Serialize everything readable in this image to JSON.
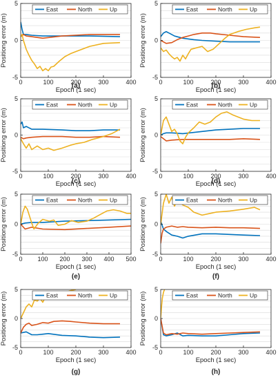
{
  "colors": {
    "East": "#0072BD",
    "North": "#D95319",
    "Up": "#EDB120",
    "grid": "#d9d9d9",
    "axis": "#262626"
  },
  "chart_data": [
    {
      "panel": "(a)",
      "type": "line",
      "xlabel": "Epoch (1 sec)",
      "ylabel": "Positiong error (m)",
      "xlim": [
        0,
        400
      ],
      "ylim": [
        -5,
        5
      ],
      "xticks": [
        0,
        100,
        200,
        300,
        400
      ],
      "yticks": [
        -5,
        0,
        5
      ],
      "grid": true,
      "legend": "top",
      "series": [
        {
          "name": "East",
          "x": [
            0,
            5,
            10,
            20,
            40,
            80,
            150,
            250,
            360
          ],
          "y": [
            2.5,
            1.5,
            0.8,
            0.8,
            0.7,
            0.6,
            0.6,
            0.6,
            0.5
          ]
        },
        {
          "name": "North",
          "x": [
            0,
            10,
            20,
            40,
            80,
            150,
            250,
            360
          ],
          "y": [
            0.5,
            0.8,
            0.6,
            0.5,
            0.3,
            0.6,
            0.8,
            0.8
          ]
        },
        {
          "name": "Up",
          "x": [
            0,
            5,
            10,
            20,
            30,
            40,
            50,
            60,
            70,
            80,
            90,
            100,
            110,
            120,
            140,
            160,
            180,
            200,
            250,
            300,
            360
          ],
          "y": [
            0.5,
            0.8,
            0,
            -1.2,
            -2.0,
            -2.7,
            -3.2,
            -3.8,
            -3.5,
            -4.1,
            -3.8,
            -4.1,
            -3.6,
            -3.5,
            -2.8,
            -2.2,
            -1.8,
            -1.5,
            -0.8,
            -0.4,
            -0.3
          ]
        }
      ]
    },
    {
      "panel": "(b)",
      "type": "line",
      "xlabel": "Epoch (1 sec)",
      "ylabel": "Positiong error (m)",
      "xlim": [
        0,
        400
      ],
      "ylim": [
        -5,
        5
      ],
      "xticks": [
        0,
        100,
        200,
        300,
        400
      ],
      "yticks": [
        -5,
        0,
        5
      ],
      "grid": true,
      "legend": "top",
      "series": [
        {
          "name": "East",
          "x": [
            0,
            10,
            20,
            30,
            50,
            80,
            120,
            150,
            200,
            250,
            300,
            360
          ],
          "y": [
            0.5,
            1.0,
            1.2,
            1.0,
            0.6,
            0.3,
            0.1,
            0.0,
            -0.1,
            -0.2,
            -0.2,
            -0.2
          ]
        },
        {
          "name": "North",
          "x": [
            0,
            20,
            40,
            60,
            80,
            100,
            120,
            150,
            180,
            200,
            250,
            300,
            360
          ],
          "y": [
            0.0,
            -0.4,
            -0.3,
            0.1,
            0.4,
            0.6,
            0.8,
            1.0,
            1.0,
            0.9,
            0.7,
            0.5,
            0.4
          ]
        },
        {
          "name": "Up",
          "x": [
            0,
            10,
            20,
            30,
            40,
            50,
            60,
            70,
            80,
            90,
            100,
            110,
            130,
            150,
            170,
            190,
            210,
            230,
            250,
            280,
            310,
            340,
            360
          ],
          "y": [
            -1.0,
            -1.5,
            -1.3,
            -1.8,
            -2.2,
            -2.5,
            -2.3,
            -2.8,
            -2.0,
            -2.5,
            -1.8,
            -1.2,
            -1.0,
            -0.8,
            -1.5,
            -1.2,
            -0.5,
            0.2,
            0.8,
            1.2,
            1.5,
            1.7,
            1.8
          ]
        }
      ]
    },
    {
      "panel": "(c)",
      "type": "line",
      "xlabel": "Epoch (1 sec)",
      "ylabel": "Positiong error (m)",
      "xlim": [
        0,
        400
      ],
      "ylim": [
        -5,
        5
      ],
      "xticks": [
        0,
        100,
        200,
        300,
        400
      ],
      "yticks": [
        -5,
        0,
        5
      ],
      "grid": true,
      "legend": "top",
      "series": [
        {
          "name": "East",
          "x": [
            0,
            5,
            10,
            20,
            40,
            80,
            150,
            200,
            250,
            300,
            360
          ],
          "y": [
            1.5,
            1.8,
            1.0,
            1.2,
            0.8,
            0.8,
            0.7,
            0.6,
            0.6,
            0.7,
            0.7
          ]
        },
        {
          "name": "North",
          "x": [
            0,
            10,
            20,
            40,
            80,
            150,
            200,
            250,
            300,
            360
          ],
          "y": [
            -0.3,
            -0.5,
            -0.4,
            -0.3,
            -0.2,
            -0.2,
            -0.3,
            -0.3,
            -0.2,
            -0.3
          ]
        },
        {
          "name": "Up",
          "x": [
            0,
            10,
            20,
            30,
            40,
            60,
            80,
            100,
            120,
            150,
            180,
            200,
            230,
            260,
            300,
            330,
            360
          ],
          "y": [
            -0.5,
            -1.2,
            -1.8,
            -1.2,
            -2.0,
            -1.5,
            -2.0,
            -1.8,
            -2.1,
            -1.8,
            -1.4,
            -1.2,
            -1.0,
            -0.6,
            -0.2,
            0.2,
            0.8
          ]
        }
      ]
    },
    {
      "panel": "(d)",
      "type": "line",
      "xlabel": "Epoch (1 sec)",
      "ylabel": "Positiong error (m)",
      "xlim": [
        0,
        400
      ],
      "ylim": [
        -5,
        5
      ],
      "xticks": [
        0,
        100,
        200,
        300,
        400
      ],
      "yticks": [
        -5,
        0,
        5
      ],
      "grid": true,
      "legend": "top",
      "series": [
        {
          "name": "East",
          "x": [
            0,
            10,
            20,
            40,
            80,
            150,
            200,
            250,
            300,
            360
          ],
          "y": [
            0.0,
            0.2,
            0.3,
            0.3,
            0.2,
            0.5,
            0.7,
            0.8,
            0.9,
            0.9
          ]
        },
        {
          "name": "North",
          "x": [
            0,
            10,
            20,
            40,
            80,
            150,
            200,
            250,
            300,
            360
          ],
          "y": [
            -0.2,
            -0.5,
            -0.8,
            -0.7,
            -0.6,
            -0.6,
            -0.6,
            -0.6,
            -0.5,
            -0.6
          ]
        },
        {
          "name": "Up",
          "x": [
            0,
            10,
            20,
            30,
            40,
            50,
            60,
            70,
            80,
            90,
            100,
            120,
            140,
            160,
            180,
            200,
            220,
            240,
            260,
            280,
            300,
            330,
            360
          ],
          "y": [
            0.0,
            2.0,
            2.5,
            1.5,
            0.5,
            0.8,
            0.2,
            -0.8,
            -1.2,
            -0.3,
            0.3,
            1.0,
            1.8,
            1.5,
            1.8,
            2.5,
            3.0,
            3.2,
            2.8,
            2.5,
            2.2,
            2.0,
            2.0
          ]
        }
      ]
    },
    {
      "panel": "(e)",
      "type": "line",
      "xlabel": "Epoch (1 sec)",
      "ylabel": "Positiong error (m)",
      "xlim": [
        0,
        500
      ],
      "ylim": [
        -5,
        5
      ],
      "xticks": [
        0,
        100,
        200,
        300,
        400,
        500
      ],
      "yticks": [
        -5,
        0,
        5
      ],
      "grid": true,
      "legend": "top",
      "series": [
        {
          "name": "East",
          "x": [
            0,
            20,
            50,
            100,
            200,
            300,
            400,
            500
          ],
          "y": [
            0.0,
            0.2,
            0.3,
            0.3,
            0.5,
            0.6,
            0.7,
            0.8
          ]
        },
        {
          "name": "North",
          "x": [
            0,
            20,
            50,
            100,
            200,
            300,
            400,
            500
          ],
          "y": [
            0.0,
            -0.8,
            -0.5,
            -0.8,
            -0.9,
            -0.7,
            -0.5,
            -0.3
          ]
        },
        {
          "name": "Up",
          "x": [
            0,
            10,
            20,
            30,
            50,
            60,
            80,
            100,
            130,
            150,
            170,
            200,
            230,
            260,
            300,
            330,
            360,
            390,
            420,
            450,
            480,
            500
          ],
          "y": [
            0.0,
            2.0,
            3.0,
            2.5,
            0.2,
            -0.8,
            0.2,
            0.8,
            0.5,
            0.7,
            -0.2,
            0.0,
            0.6,
            0.3,
            0.5,
            1.0,
            1.6,
            2.2,
            2.4,
            2.2,
            1.8,
            1.8
          ]
        }
      ]
    },
    {
      "panel": "(f)",
      "type": "line",
      "xlabel": "Epoch (1 sec)",
      "ylabel": "Positiong error (m)",
      "xlim": [
        0,
        400
      ],
      "ylim": [
        -5,
        5
      ],
      "xticks": [
        0,
        100,
        200,
        300,
        400
      ],
      "yticks": [
        -5,
        0,
        5
      ],
      "grid": true,
      "legend": "top",
      "series": [
        {
          "name": "East",
          "x": [
            0,
            10,
            20,
            40,
            60,
            80,
            100,
            150,
            200,
            250,
            300,
            360
          ],
          "y": [
            0.5,
            -0.8,
            -1.2,
            -1.8,
            -2.0,
            -2.3,
            -2.0,
            -1.6,
            -1.6,
            -1.7,
            -1.8,
            -1.9
          ]
        },
        {
          "name": "North",
          "x": [
            0,
            5,
            10,
            20,
            40,
            60,
            80,
            100,
            150,
            200,
            250,
            300,
            360
          ],
          "y": [
            -3.2,
            -1.5,
            -0.8,
            -0.5,
            -0.3,
            -0.5,
            -0.4,
            -0.5,
            -0.6,
            -0.5,
            -0.6,
            -0.6,
            -0.7
          ]
        },
        {
          "name": "Up",
          "x": [
            0,
            10,
            20,
            30,
            40,
            50,
            60,
            80,
            100,
            120,
            150,
            180,
            200,
            250,
            300,
            340,
            360
          ],
          "y": [
            0.0,
            3.5,
            5.0,
            3.5,
            4.5,
            3.0,
            4.0,
            3.2,
            2.8,
            2.0,
            1.5,
            1.8,
            2.0,
            2.2,
            2.5,
            2.8,
            2.4
          ]
        }
      ]
    },
    {
      "panel": "(g)",
      "type": "line",
      "xlabel": "Epoch (1 sec)",
      "ylabel": "Positiong error (m)",
      "xlim": [
        0,
        400
      ],
      "ylim": [
        -5,
        5
      ],
      "xticks": [
        0,
        100,
        200,
        300,
        400
      ],
      "yticks": [
        -5,
        0,
        5
      ],
      "grid": true,
      "legend": "top",
      "series": [
        {
          "name": "East",
          "x": [
            0,
            20,
            40,
            60,
            80,
            100,
            150,
            200,
            250,
            300,
            360
          ],
          "y": [
            -2.5,
            -2.3,
            -2.8,
            -2.8,
            -2.7,
            -2.6,
            -2.9,
            -3.0,
            -3.2,
            -3.3,
            -3.2
          ]
        },
        {
          "name": "North",
          "x": [
            0,
            10,
            20,
            30,
            40,
            60,
            80,
            100,
            120,
            150,
            180,
            200,
            250,
            300,
            360
          ],
          "y": [
            -2.5,
            -1.5,
            -1.0,
            -0.8,
            -1.2,
            -1.0,
            -0.7,
            -0.8,
            -0.5,
            -0.4,
            -0.5,
            -0.6,
            -0.8,
            -0.9,
            -0.9
          ]
        },
        {
          "name": "Up",
          "x": [
            0,
            10,
            20,
            30,
            40,
            50,
            60,
            70,
            80,
            90,
            100,
            110,
            120,
            140,
            160,
            180,
            200
          ],
          "y": [
            0.0,
            1.0,
            2.0,
            2.5,
            2.0,
            3.2,
            3.0,
            3.5,
            2.8,
            3.8,
            3.6,
            4.2,
            3.8,
            4.2,
            4.5,
            4.8,
            5.0
          ]
        }
      ]
    },
    {
      "panel": "(h)",
      "type": "line",
      "xlabel": "Epoch (1 sec)",
      "ylabel": "Positiong error (m)",
      "xlim": [
        0,
        400
      ],
      "ylim": [
        -5,
        5
      ],
      "xticks": [
        0,
        100,
        200,
        300,
        400
      ],
      "yticks": [
        -5,
        0,
        5
      ],
      "grid": true,
      "legend": "top",
      "series": [
        {
          "name": "East",
          "x": [
            0,
            10,
            20,
            40,
            60,
            80,
            100,
            150,
            200,
            250,
            300,
            360
          ],
          "y": [
            0.0,
            -2.8,
            -3.0,
            -2.8,
            -2.5,
            -3.0,
            -2.9,
            -3.0,
            -3.0,
            -2.8,
            -2.6,
            -2.5
          ]
        },
        {
          "name": "North",
          "x": [
            0,
            10,
            20,
            40,
            60,
            80,
            100,
            150,
            200,
            250,
            300,
            360
          ],
          "y": [
            0.0,
            -2.5,
            -2.8,
            -2.6,
            -2.7,
            -2.5,
            -2.6,
            -2.7,
            -2.6,
            -2.5,
            -2.4,
            -2.3
          ]
        },
        {
          "name": "Up",
          "x": [
            0,
            3,
            6,
            10,
            14
          ],
          "y": [
            0.0,
            2.0,
            3.5,
            4.5,
            5.0
          ]
        }
      ]
    }
  ]
}
